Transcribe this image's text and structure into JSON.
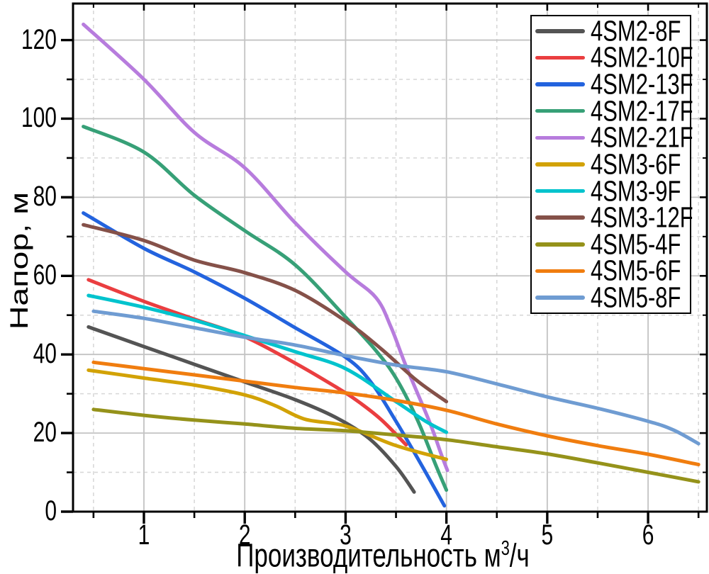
{
  "chart_data": {
    "type": "line",
    "title": "",
    "xlabel": "Производительность м³/ч",
    "xlabel_parts": {
      "main": "Производительность м",
      "sup": "3",
      "rest": "/ч"
    },
    "ylabel": "Напор, м",
    "xlim": [
      0.297,
      6.583
    ],
    "ylim": [
      0,
      129.3
    ],
    "x_major_ticks": [
      1,
      2,
      3,
      4,
      5,
      6
    ],
    "x_minor_ticks": [
      0.5,
      1.5,
      2.5,
      3.5,
      4.5,
      5.5,
      6.5
    ],
    "y_major_ticks": [
      0,
      20,
      40,
      60,
      80,
      100,
      120
    ],
    "y_minor_ticks": [
      10,
      30,
      50,
      70,
      90,
      110
    ],
    "x_tick_labels": [
      "1",
      "2",
      "3",
      "4",
      "5",
      "6"
    ],
    "y_tick_labels": [
      "0",
      "20",
      "40",
      "60",
      "80",
      "100",
      "120"
    ],
    "grid": {
      "major_solid": true,
      "minor_dashed": true
    },
    "legend_position": "top-right",
    "frame_color": "#000000",
    "major_grid_color": "#c3c3c3",
    "minor_grid_color": "#d6d6d6",
    "series": [
      {
        "name": "4SM2-8F",
        "color": "#545454",
        "points": [
          [
            0.45,
            47
          ],
          [
            1,
            42
          ],
          [
            1.5,
            37.5
          ],
          [
            2,
            33
          ],
          [
            2.5,
            28.5
          ],
          [
            2.9,
            24
          ],
          [
            3.23,
            18.7
          ],
          [
            3.5,
            11.5
          ],
          [
            3.68,
            5
          ]
        ]
      },
      {
        "name": "4SM2-10F",
        "color": "#EA3E40",
        "points": [
          [
            0.45,
            59
          ],
          [
            1,
            53.5
          ],
          [
            1.5,
            49
          ],
          [
            2,
            44.5
          ],
          [
            2.5,
            37.8
          ],
          [
            2.9,
            31.8
          ],
          [
            3.1,
            28.5
          ],
          [
            3.35,
            23.5
          ],
          [
            3.6,
            17
          ]
        ]
      },
      {
        "name": "4SM2-13F",
        "color": "#2363DE",
        "points": [
          [
            0.4,
            76
          ],
          [
            1,
            67
          ],
          [
            1.5,
            61
          ],
          [
            2,
            54.3
          ],
          [
            2.5,
            46.8
          ],
          [
            3,
            39.3
          ],
          [
            3.25,
            33
          ],
          [
            3.5,
            23
          ],
          [
            3.75,
            12
          ],
          [
            3.98,
            1.5
          ]
        ]
      },
      {
        "name": "4SM2-17F",
        "color": "#37A077",
        "points": [
          [
            0.4,
            98
          ],
          [
            1,
            91.5
          ],
          [
            1.5,
            80.5
          ],
          [
            2,
            71.5
          ],
          [
            2.5,
            62.8
          ],
          [
            3,
            49.5
          ],
          [
            3.3,
            41
          ],
          [
            3.5,
            34
          ],
          [
            3.71,
            23.5
          ],
          [
            3.9,
            11.5
          ],
          [
            4,
            5.5
          ]
        ]
      },
      {
        "name": "4SM2-21F",
        "color": "#B77CDD",
        "points": [
          [
            0.4,
            124
          ],
          [
            1,
            110
          ],
          [
            1.5,
            96.5
          ],
          [
            2,
            87.5
          ],
          [
            2.5,
            73.5
          ],
          [
            3,
            61
          ],
          [
            3.3,
            54.5
          ],
          [
            3.45,
            47
          ],
          [
            3.6,
            37
          ],
          [
            3.83,
            23
          ],
          [
            3.95,
            14.5
          ],
          [
            4.01,
            10.5
          ]
        ]
      },
      {
        "name": "4SM3-6F",
        "color": "#D2A206",
        "points": [
          [
            0.45,
            36
          ],
          [
            1,
            34
          ],
          [
            1.5,
            32.2
          ],
          [
            2,
            29.7
          ],
          [
            2.3,
            27
          ],
          [
            2.6,
            23.5
          ],
          [
            3,
            21.8
          ],
          [
            3.5,
            16.8
          ],
          [
            4,
            13.3
          ]
        ]
      },
      {
        "name": "4SM3-9F",
        "color": "#00C3CD",
        "points": [
          [
            0.45,
            55
          ],
          [
            1,
            52
          ],
          [
            1.5,
            48.7
          ],
          [
            2,
            44.8
          ],
          [
            2.5,
            40.7
          ],
          [
            3,
            36.4
          ],
          [
            3.5,
            28
          ],
          [
            3.8,
            22.9
          ],
          [
            4,
            20.2
          ]
        ]
      },
      {
        "name": "4SM3-12F",
        "color": "#855149",
        "points": [
          [
            0.4,
            73
          ],
          [
            1,
            69
          ],
          [
            1.5,
            64
          ],
          [
            2,
            60.8
          ],
          [
            2.5,
            56.3
          ],
          [
            3,
            48.5
          ],
          [
            3.35,
            41.5
          ],
          [
            3.7,
            33.5
          ],
          [
            4,
            28
          ]
        ]
      },
      {
        "name": "4SM5-4F",
        "color": "#95921A",
        "points": [
          [
            0.5,
            26
          ],
          [
            1,
            24.5
          ],
          [
            1.5,
            23.3
          ],
          [
            2,
            22.3
          ],
          [
            2.5,
            21.2
          ],
          [
            3,
            20.6
          ],
          [
            3.5,
            19.5
          ],
          [
            4,
            18.3
          ],
          [
            4.5,
            16.5
          ],
          [
            5,
            14.7
          ],
          [
            5.5,
            12.4
          ],
          [
            6,
            10
          ],
          [
            6.5,
            7.6
          ]
        ]
      },
      {
        "name": "4SM5-6F",
        "color": "#F07D0F",
        "points": [
          [
            0.5,
            38
          ],
          [
            1,
            36.4
          ],
          [
            1.5,
            34.8
          ],
          [
            2,
            33.2
          ],
          [
            2.5,
            31.6
          ],
          [
            3,
            30.2
          ],
          [
            3.5,
            28.3
          ],
          [
            4,
            25.8
          ],
          [
            4.5,
            22.3
          ],
          [
            5,
            19.3
          ],
          [
            5.5,
            16.8
          ],
          [
            6,
            14.6
          ],
          [
            6.5,
            12
          ]
        ]
      },
      {
        "name": "4SM5-8F",
        "color": "#6F9CD2",
        "points": [
          [
            0.5,
            51
          ],
          [
            1,
            49.2
          ],
          [
            1.5,
            46.8
          ],
          [
            2,
            44.4
          ],
          [
            2.5,
            42.4
          ],
          [
            3,
            39.7
          ],
          [
            3.5,
            37.3
          ],
          [
            4,
            35.6
          ],
          [
            4.5,
            32.5
          ],
          [
            5,
            29.2
          ],
          [
            5.5,
            26.3
          ],
          [
            6,
            23
          ],
          [
            6.25,
            20.8
          ],
          [
            6.5,
            17.3
          ]
        ]
      }
    ]
  }
}
